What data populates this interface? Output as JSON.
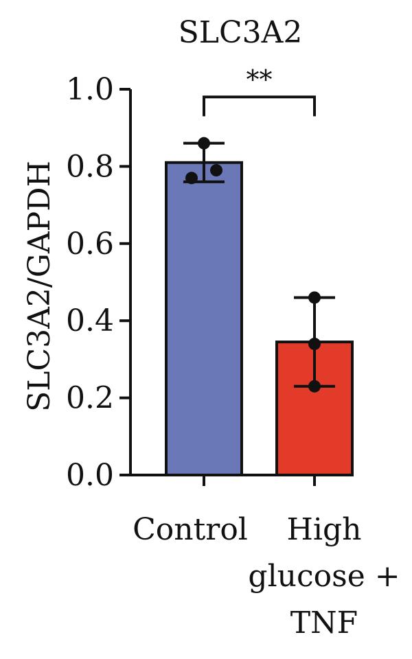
{
  "chart_data": {
    "type": "bar",
    "title": "SLC3A2",
    "ylabel": "SLC3A2/GAPDH",
    "xlabel": "",
    "ylim": [
      0,
      1.0
    ],
    "yticks": [
      "0.0",
      "0.2",
      "0.4",
      "0.6",
      "0.8",
      "1.0"
    ],
    "categories": [
      [
        "Control"
      ],
      [
        "High",
        "glucose +",
        "TNF"
      ]
    ],
    "values": [
      0.81,
      0.345
    ],
    "error": [
      0.05,
      0.115
    ],
    "points": [
      [
        0.77,
        0.79,
        0.86
      ],
      [
        0.23,
        0.34,
        0.46
      ]
    ],
    "colors": [
      "#6b78b8",
      "#e23b2a"
    ],
    "significance": {
      "label": "**",
      "between": [
        0,
        1
      ]
    },
    "grid": false,
    "legend": "none"
  }
}
